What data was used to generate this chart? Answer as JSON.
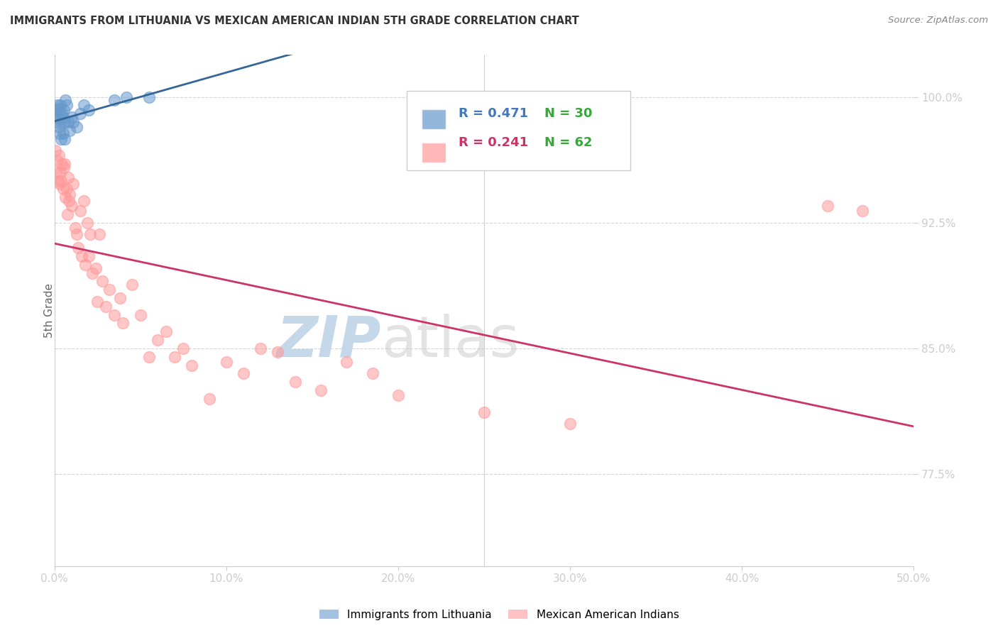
{
  "title": "IMMIGRANTS FROM LITHUANIA VS MEXICAN AMERICAN INDIAN 5TH GRADE CORRELATION CHART",
  "source": "Source: ZipAtlas.com",
  "ylabel": "5th Grade",
  "xlim": [
    0.0,
    50.0
  ],
  "ylim": [
    72.0,
    102.5
  ],
  "yticks": [
    77.5,
    85.0,
    92.5,
    100.0
  ],
  "xticks": [
    0.0,
    10.0,
    20.0,
    30.0,
    40.0,
    50.0
  ],
  "xtick_labels": [
    "0.0%",
    "10.0%",
    "20.0%",
    "30.0%",
    "40.0%",
    "50.0%"
  ],
  "ytick_labels": [
    "77.5%",
    "85.0%",
    "92.5%",
    "100.0%"
  ],
  "series1": {
    "label": "Immigrants from Lithuania",
    "color": "#6699CC",
    "R": 0.471,
    "N": 30,
    "x": [
      0.1,
      0.15,
      0.2,
      0.2,
      0.25,
      0.25,
      0.3,
      0.3,
      0.35,
      0.4,
      0.4,
      0.45,
      0.5,
      0.5,
      0.55,
      0.6,
      0.6,
      0.65,
      0.7,
      0.8,
      0.9,
      1.0,
      1.1,
      1.3,
      1.5,
      1.7,
      2.0,
      3.5,
      4.2,
      5.5
    ],
    "y": [
      98.5,
      99.2,
      99.5,
      98.8,
      99.3,
      98.2,
      99.0,
      97.8,
      99.5,
      98.5,
      97.5,
      99.0,
      98.8,
      97.8,
      99.2,
      98.5,
      97.5,
      99.8,
      99.5,
      98.5,
      98.0,
      98.8,
      98.5,
      98.2,
      99.0,
      99.5,
      99.2,
      99.8,
      100.0,
      100.0
    ]
  },
  "series2": {
    "label": "Mexican American Indians",
    "color": "#FF9999",
    "R": 0.241,
    "N": 62,
    "x": [
      0.05,
      0.1,
      0.15,
      0.2,
      0.25,
      0.3,
      0.35,
      0.4,
      0.45,
      0.5,
      0.55,
      0.6,
      0.65,
      0.7,
      0.75,
      0.8,
      0.85,
      0.9,
      1.0,
      1.1,
      1.2,
      1.3,
      1.4,
      1.5,
      1.6,
      1.7,
      1.8,
      1.9,
      2.0,
      2.1,
      2.2,
      2.4,
      2.5,
      2.6,
      2.8,
      3.0,
      3.2,
      3.5,
      3.8,
      4.0,
      4.5,
      5.0,
      5.5,
      6.0,
      6.5,
      7.0,
      7.5,
      8.0,
      9.0,
      10.0,
      11.0,
      12.0,
      13.0,
      14.0,
      15.5,
      17.0,
      18.5,
      20.0,
      25.0,
      30.0,
      45.0,
      47.0
    ],
    "y": [
      96.8,
      95.5,
      96.2,
      95.0,
      96.5,
      94.8,
      95.5,
      95.0,
      96.0,
      94.5,
      95.8,
      96.0,
      94.0,
      94.5,
      93.0,
      95.2,
      93.8,
      94.2,
      93.5,
      94.8,
      92.2,
      91.8,
      91.0,
      93.2,
      90.5,
      93.8,
      90.0,
      92.5,
      90.5,
      91.8,
      89.5,
      89.8,
      87.8,
      91.8,
      89.0,
      87.5,
      88.5,
      87.0,
      88.0,
      86.5,
      88.8,
      87.0,
      84.5,
      85.5,
      86.0,
      84.5,
      85.0,
      84.0,
      82.0,
      84.2,
      83.5,
      85.0,
      84.8,
      83.0,
      82.5,
      84.2,
      83.5,
      82.2,
      81.2,
      80.5,
      93.5,
      93.2
    ]
  },
  "trendline1_color": "#336699",
  "trendline2_color": "#CC3366",
  "watermark_zip_color": "#C5D8EA",
  "watermark_atlas_color": "#C8C8C8",
  "background_color": "#FFFFFF",
  "grid_color": "#CCCCCC",
  "axis_tick_color": "#4477BB",
  "title_color": "#333333",
  "legend_R1_color": "#4477BB",
  "legend_R2_color": "#CC3366",
  "legend_N1_color": "#33AA33",
  "legend_N2_color": "#33AA33"
}
